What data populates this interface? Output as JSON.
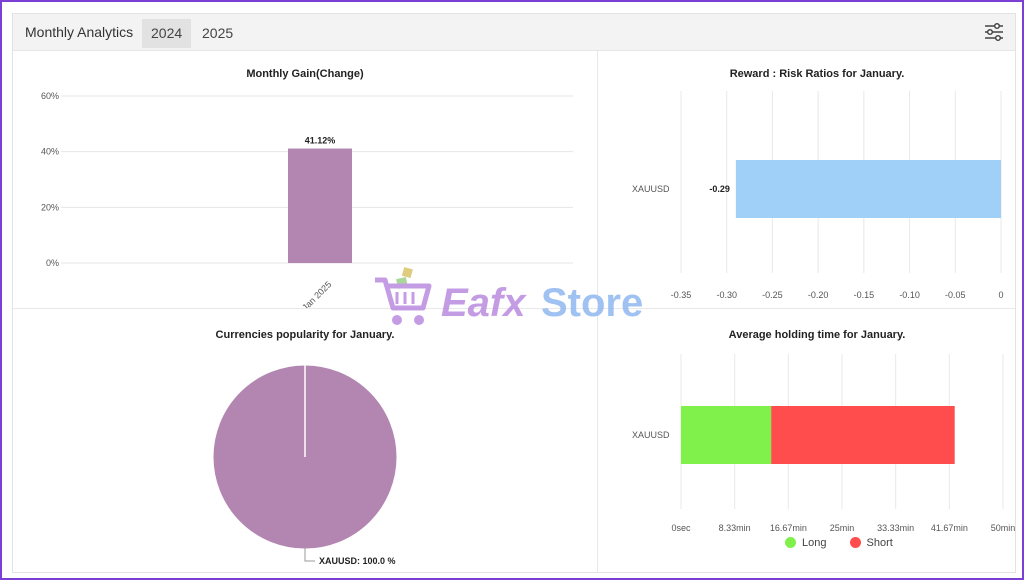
{
  "header": {
    "title": "Monthly Analytics",
    "tabs": [
      {
        "label": "2024",
        "active": true
      },
      {
        "label": "2025",
        "active": false
      }
    ],
    "settings_icon": "sliders-icon"
  },
  "watermark": {
    "text_left": "Eafx",
    "text_right": "Store",
    "icon": "cart-icon"
  },
  "chart_data": [
    {
      "type": "bar",
      "title": "Monthly Gain(Change)",
      "categories": [
        "Jan 2025"
      ],
      "values": [
        41.12
      ],
      "data_labels": [
        "41.12%"
      ],
      "yticks": [
        "0%",
        "20%",
        "40%",
        "60%"
      ],
      "ylim": [
        0,
        60
      ],
      "color": "#b286b1",
      "grid": true
    },
    {
      "type": "bar",
      "orientation": "horizontal",
      "title": "Reward : Risk Ratios for January.",
      "categories": [
        "XAUUSD"
      ],
      "values": [
        -0.29
      ],
      "data_labels": [
        "-0.29"
      ],
      "xticks": [
        "-0.35",
        "-0.30",
        "-0.25",
        "-0.20",
        "-0.15",
        "-0.10",
        "-0.05",
        "0"
      ],
      "xlim": [
        -0.35,
        0
      ],
      "color": "#a0cff7",
      "grid": true
    },
    {
      "type": "pie",
      "title": "Currencies popularity for January.",
      "labels": [
        "XAUUSD"
      ],
      "values": [
        100.0
      ],
      "data_labels": [
        "XAUUSD: 100.0 %"
      ],
      "color": "#b286b1"
    },
    {
      "type": "bar",
      "orientation": "horizontal",
      "stacked": true,
      "title": "Average holding time for January.",
      "categories": [
        "XAUUSD"
      ],
      "series": [
        {
          "name": "Long",
          "values": [
            14
          ],
          "color": "#80f04a"
        },
        {
          "name": "Short",
          "values": [
            28.5
          ],
          "color": "#ff4d4d"
        }
      ],
      "xticks": [
        "0sec",
        "8.33min",
        "16.67min",
        "25min",
        "33.33min",
        "41.67min",
        "50min"
      ],
      "xlim": [
        0,
        50
      ],
      "legend": "bottom",
      "grid": true
    }
  ]
}
